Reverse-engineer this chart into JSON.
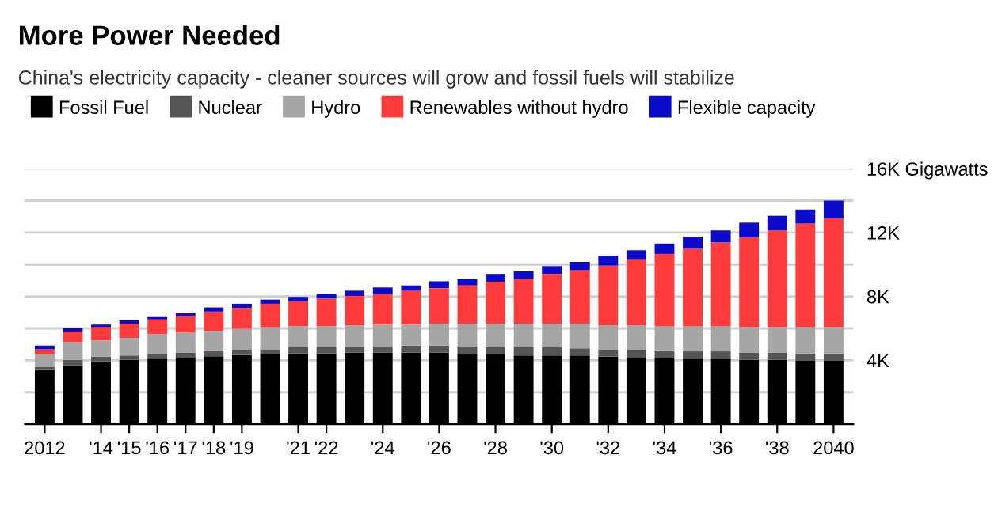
{
  "chart_data": {
    "type": "bar",
    "stacked": true,
    "title": "More Power Needed",
    "subtitle": "China's electricity capacity - cleaner sources will grow and fossil fuels will stabilize",
    "categories": [
      "2012",
      null,
      "'14",
      "'15",
      "'16",
      "'17",
      "'18",
      "'19",
      null,
      "'21",
      "'22",
      null,
      "'24",
      null,
      "'26",
      null,
      "'28",
      null,
      "'30",
      null,
      "'32",
      null,
      "'34",
      null,
      "'36",
      null,
      "'38",
      null,
      "2040"
    ],
    "series": [
      {
        "name": "Fossil Fuel",
        "color": "#000000",
        "values": [
          3440,
          3700,
          3930,
          4030,
          4100,
          4160,
          4260,
          4330,
          4390,
          4430,
          4430,
          4490,
          4490,
          4490,
          4490,
          4360,
          4360,
          4300,
          4300,
          4300,
          4230,
          4160,
          4160,
          4100,
          4100,
          4030,
          4030,
          3970,
          3970
        ]
      },
      {
        "name": "Nuclear",
        "color": "#555555",
        "values": [
          160,
          330,
          300,
          270,
          290,
          330,
          360,
          360,
          300,
          390,
          390,
          360,
          400,
          430,
          430,
          530,
          460,
          520,
          520,
          450,
          460,
          530,
          460,
          460,
          460,
          460,
          460,
          460,
          460
        ]
      },
      {
        "name": "Hydro",
        "color": "#a6a6a6",
        "values": [
          760,
          1120,
          1020,
          1110,
          1250,
          1250,
          1220,
          1280,
          1380,
          1310,
          1310,
          1350,
          1340,
          1310,
          1380,
          1410,
          1480,
          1480,
          1480,
          1550,
          1510,
          1510,
          1510,
          1570,
          1570,
          1580,
          1580,
          1640,
          1640
        ]
      },
      {
        "name": "Renewables without hydro",
        "color": "#ff3b3b",
        "values": [
          330,
          650,
          820,
          890,
          920,
          1050,
          1210,
          1310,
          1470,
          1570,
          1740,
          1830,
          1930,
          2130,
          2220,
          2390,
          2620,
          2810,
          3110,
          3340,
          3730,
          4130,
          4530,
          4850,
          5250,
          5630,
          6060,
          6490,
          6820
        ]
      },
      {
        "name": "Flexible capacity",
        "color": "#0a0ac8",
        "values": [
          230,
          200,
          160,
          190,
          190,
          190,
          260,
          260,
          260,
          270,
          260,
          330,
          400,
          330,
          430,
          420,
          490,
          460,
          490,
          520,
          630,
          560,
          650,
          760,
          750,
          920,
          920,
          880,
          1110
        ]
      }
    ],
    "ylim": [
      0,
      16000
    ],
    "yticks": [
      {
        "value": 2000,
        "label": null
      },
      {
        "value": 4000,
        "label": "4K"
      },
      {
        "value": 6000,
        "label": null
      },
      {
        "value": 8000,
        "label": "8K"
      },
      {
        "value": 10000,
        "label": null
      },
      {
        "value": 12000,
        "label": "12K"
      },
      {
        "value": 14000,
        "label": null
      },
      {
        "value": 16000,
        "label": "16K Gigawatts"
      }
    ],
    "grid": "y",
    "legend": "top",
    "marker": "square"
  }
}
